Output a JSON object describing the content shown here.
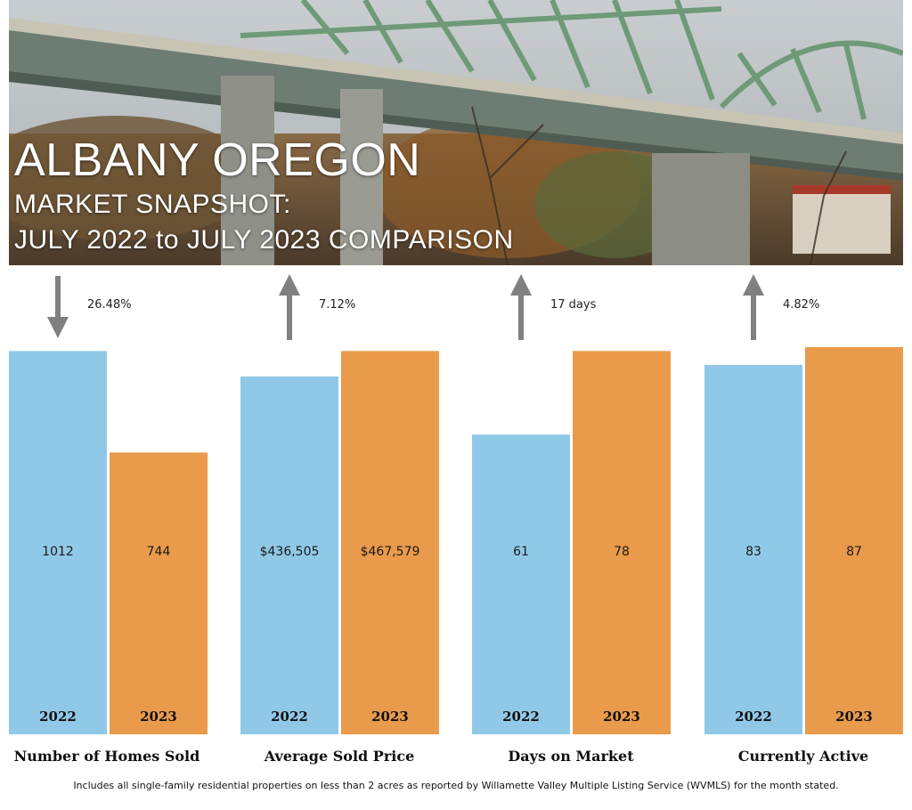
{
  "hero": {
    "title": "ALBANY OREGON",
    "subtitle_line1": "MARKET SNAPSHOT:",
    "subtitle_line2": "JULY 2022 to JULY 2023 COMPARISON"
  },
  "colors": {
    "series_2022": "#90C9E7",
    "series_2023": "#E99A4A",
    "arrow": "#808080"
  },
  "chart_data": [
    {
      "type": "bar",
      "title": "Number of Homes Sold",
      "categories": [
        "2022",
        "2023"
      ],
      "values": [
        1012,
        744
      ],
      "value_labels": [
        "1012",
        "744"
      ],
      "change": "26.48%",
      "direction": "down"
    },
    {
      "type": "bar",
      "title": "Average Sold Price",
      "categories": [
        "2022",
        "2023"
      ],
      "values": [
        436505,
        467579
      ],
      "value_labels": [
        "$436,505",
        "$467,579"
      ],
      "change": "7.12%",
      "direction": "up"
    },
    {
      "type": "bar",
      "title": "Days on Market",
      "categories": [
        "2022",
        "2023"
      ],
      "values": [
        61,
        78
      ],
      "value_labels": [
        "61",
        "78"
      ],
      "change": "17 days",
      "direction": "up"
    },
    {
      "type": "bar",
      "title": "Currently Active",
      "categories": [
        "2022",
        "2023"
      ],
      "values": [
        83,
        87
      ],
      "value_labels": [
        "83",
        "87"
      ],
      "change": "4.82%",
      "direction": "up"
    }
  ],
  "footnote": "Includes all single-family residential properties on less than 2 acres as reported by Willamette Valley Multiple Listing Service (WVMLS) for the month stated."
}
